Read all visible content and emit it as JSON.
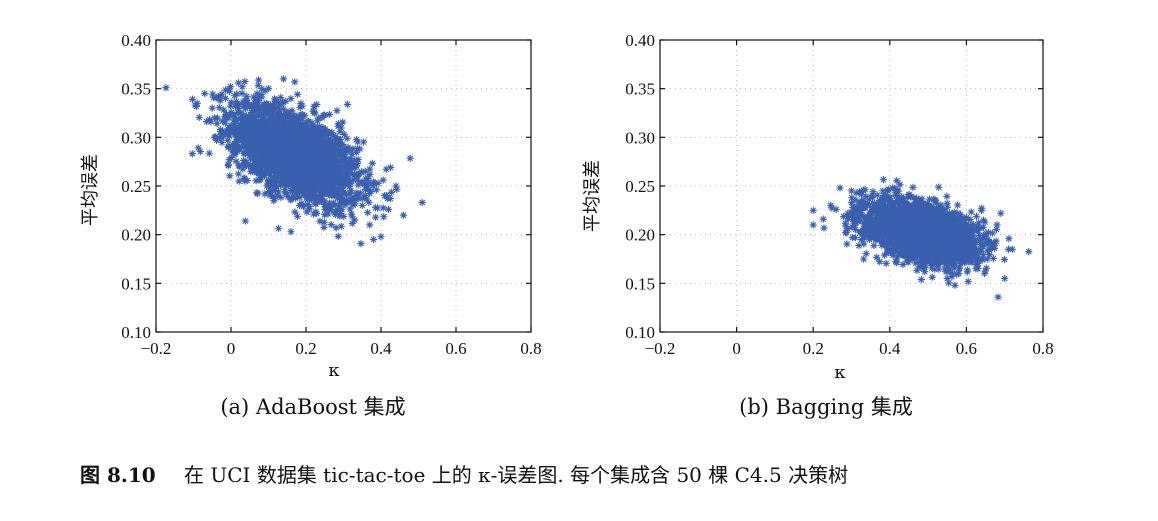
{
  "figure": {
    "caption_number": "图 8.10",
    "caption_text": "在 UCI 数据集 tic-tac-toe 上的 κ-误差图. 每个集成含 50 棵 C4.5 决策树",
    "point_color": "#3a5fae"
  },
  "chart_data": [
    {
      "type": "scatter",
      "title": "(a) AdaBoost 集成",
      "xlabel": "κ",
      "ylabel": "平均误差",
      "xlim": [
        -0.2,
        0.8
      ],
      "ylim": [
        0.1,
        0.4
      ],
      "xticks": [
        "−0.2",
        "0",
        "0.2",
        "0.4",
        "0.6",
        "0.8"
      ],
      "yticks": [
        "0.10",
        "0.15",
        "0.20",
        "0.25",
        "0.30",
        "0.35",
        "0.40"
      ],
      "grid": true,
      "marker": "asterisk",
      "series": [
        {
          "distribution": {
            "x_mean": 0.17,
            "x_sd": 0.085,
            "y_mean": 0.283,
            "y_sd": 0.026,
            "corr": -0.55,
            "count": 2500
          },
          "values": [
            [
              -0.09,
              0.335
            ],
            [
              -0.07,
              0.345
            ],
            [
              -0.05,
              0.33
            ],
            [
              0.02,
              0.356
            ],
            [
              0.03,
              0.352
            ],
            [
              0.14,
              0.36
            ],
            [
              0.17,
              0.357
            ],
            [
              0.1,
              0.35
            ],
            [
              0.02,
              0.3
            ],
            [
              0.0,
              0.31
            ],
            [
              0.16,
              0.203
            ],
            [
              0.3,
              0.25
            ],
            [
              0.33,
              0.215
            ],
            [
              0.35,
              0.23
            ],
            [
              0.38,
              0.195
            ],
            [
              0.4,
              0.198
            ],
            [
              0.41,
              0.24
            ],
            [
              0.44,
              0.25
            ],
            [
              0.46,
              0.22
            ],
            [
              0.51,
              0.233
            ],
            [
              0.37,
              0.21
            ],
            [
              0.42,
              0.226
            ],
            [
              0.34,
              0.262
            ],
            [
              0.31,
              0.27
            ],
            [
              0.29,
              0.219
            ]
          ]
        }
      ]
    },
    {
      "type": "scatter",
      "title": "(b) Bagging 集成",
      "xlabel": "κ",
      "ylabel": "平均误差",
      "xlim": [
        -0.2,
        0.8
      ],
      "ylim": [
        0.1,
        0.4
      ],
      "xticks": [
        "−0.2",
        "0",
        "0.2",
        "0.4",
        "0.6",
        "0.8"
      ],
      "yticks": [
        "0.10",
        "0.15",
        "0.20",
        "0.25",
        "0.30",
        "0.35",
        "0.40"
      ],
      "grid": true,
      "marker": "asterisk",
      "series": [
        {
          "distribution": {
            "x_mean": 0.48,
            "x_sd": 0.075,
            "y_mean": 0.203,
            "y_sd": 0.016,
            "corr": -0.45,
            "count": 2500
          },
          "values": [
            [
              0.2,
              0.21
            ],
            [
              0.2,
              0.225
            ],
            [
              0.27,
              0.248
            ],
            [
              0.3,
              0.245
            ],
            [
              0.42,
              0.245
            ],
            [
              0.55,
              0.155
            ],
            [
              0.58,
              0.16
            ],
            [
              0.63,
              0.165
            ],
            [
              0.7,
              0.155
            ],
            [
              0.71,
              0.185
            ],
            [
              0.72,
              0.185
            ],
            [
              0.68,
              0.21
            ],
            [
              0.69,
              0.222
            ],
            [
              0.66,
              0.185
            ],
            [
              0.64,
              0.175
            ]
          ]
        }
      ]
    }
  ]
}
